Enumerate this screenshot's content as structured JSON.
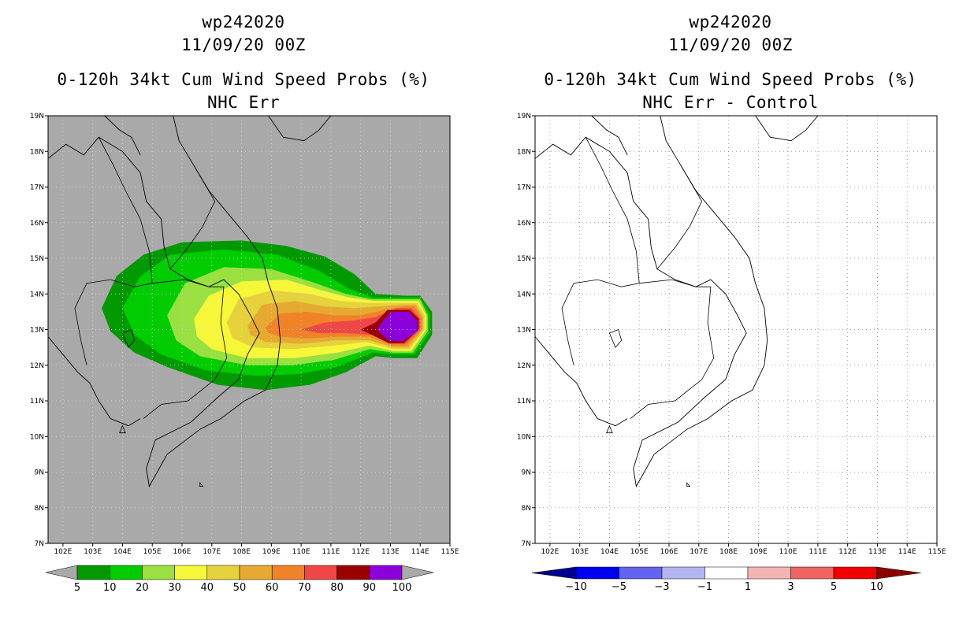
{
  "chart_data": [
    {
      "type": "heatmap",
      "title_lines": [
        "wp242020",
        "11/09/20 00Z",
        "0-120h 34kt Cum Wind Speed Probs (%)",
        "NHC Err"
      ],
      "x_ticks": [
        "102E",
        "103E",
        "104E",
        "105E",
        "106E",
        "107E",
        "108E",
        "109E",
        "110E",
        "111E",
        "112E",
        "113E",
        "114E",
        "115E"
      ],
      "y_ticks": [
        "19N",
        "18N",
        "17N",
        "16N",
        "15N",
        "14N",
        "13N",
        "12N",
        "11N",
        "10N",
        "9N",
        "8N",
        "7N"
      ],
      "xlim": [
        101.5,
        115
      ],
      "ylim": [
        7,
        19
      ],
      "background_color": "#a9a9a9",
      "contour_levels": [
        5,
        10,
        20,
        30,
        40,
        50,
        60,
        70,
        80,
        90,
        100
      ],
      "legend_labels": [
        "5",
        "10",
        "20",
        "30",
        "40",
        "50",
        "60",
        "70",
        "80",
        "90",
        "100"
      ],
      "colors": [
        "#009a00",
        "#00cc00",
        "#99e040",
        "#f7f73a",
        "#e6d23c",
        "#e6aa32",
        "#f08228",
        "#f04646",
        "#9a0000",
        "#8c00dc"
      ],
      "max_probability_center": [
        113.1,
        13.1
      ],
      "map": "Indochina / South China Sea coastline"
    },
    {
      "type": "heatmap",
      "title_lines": [
        "wp242020",
        "11/09/20 00Z",
        "0-120h 34kt Cum Wind Speed Probs (%)",
        "NHC Err - Control"
      ],
      "x_ticks": [
        "102E",
        "103E",
        "104E",
        "105E",
        "106E",
        "107E",
        "108E",
        "109E",
        "110E",
        "111E",
        "112E",
        "113E",
        "114E",
        "115E"
      ],
      "y_ticks": [
        "19N",
        "18N",
        "17N",
        "16N",
        "15N",
        "14N",
        "13N",
        "12N",
        "11N",
        "10N",
        "9N",
        "8N",
        "7N"
      ],
      "xlim": [
        101.5,
        115
      ],
      "ylim": [
        7,
        19
      ],
      "background_color": "#ffffff",
      "grid": true,
      "difference_levels": [
        -10,
        -5,
        -3,
        -1,
        1,
        3,
        5,
        10
      ],
      "legend_labels": [
        "-10",
        "-5",
        "-3",
        "-1",
        "1",
        "3",
        "5",
        "10"
      ],
      "colors": [
        "#00008c",
        "#0000f0",
        "#6464f0",
        "#b4b4f0",
        "#ffffff",
        "#f5b4b4",
        "#f06464",
        "#f00000",
        "#8c0000"
      ],
      "map": "Indochina / South China Sea coastline"
    }
  ]
}
